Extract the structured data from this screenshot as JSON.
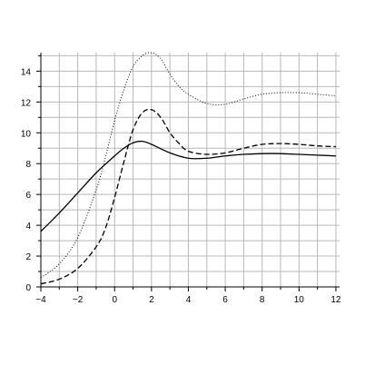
{
  "colors": {
    "background": "#ffffff",
    "grid": "#b8b8b8",
    "axis": "#000000",
    "line": "#000000"
  },
  "chart_data": {
    "type": "line",
    "title": "",
    "xlabel": "",
    "ylabel": "",
    "xlim": [
      -4,
      12.2
    ],
    "ylim": [
      0,
      15.2
    ],
    "grid": true,
    "legend": "none",
    "xticks": [
      -4,
      -2,
      0,
      2,
      4,
      6,
      8,
      10,
      12
    ],
    "xtick_labels": [
      "−4",
      "−2",
      "0",
      "2",
      "4",
      "6",
      "8",
      "10",
      "12"
    ],
    "yticks": [
      0,
      2,
      4,
      6,
      8,
      10,
      12,
      14
    ],
    "ytick_labels": [
      "0",
      "2",
      "4",
      "6",
      "8",
      "10",
      "12",
      "14"
    ],
    "series": [
      {
        "style": "solid",
        "x": [
          -4,
          -3,
          -2,
          -1,
          0,
          0.5,
          1,
          1.5,
          2,
          3,
          4,
          5,
          6,
          7,
          8,
          9,
          10,
          11,
          12
        ],
        "y": [
          3.6,
          4.8,
          6.1,
          7.4,
          8.5,
          9.0,
          9.35,
          9.45,
          9.25,
          8.7,
          8.35,
          8.35,
          8.5,
          8.6,
          8.65,
          8.65,
          8.6,
          8.55,
          8.5
        ]
      },
      {
        "style": "dashed",
        "x": [
          -4,
          -3,
          -2,
          -1,
          -0.5,
          0,
          0.5,
          1,
          1.5,
          2,
          2.5,
          3,
          3.5,
          4,
          5,
          6,
          7,
          8,
          9,
          10,
          11,
          12
        ],
        "y": [
          0.2,
          0.5,
          1.2,
          2.6,
          3.8,
          5.8,
          8.1,
          10.2,
          11.3,
          11.5,
          11.0,
          10.0,
          9.3,
          8.8,
          8.6,
          8.7,
          9.0,
          9.25,
          9.3,
          9.25,
          9.15,
          9.1
        ]
      },
      {
        "style": "dotted",
        "x": [
          -4,
          -3,
          -2,
          -1,
          -0.5,
          0,
          0.5,
          1,
          1.5,
          2,
          2.5,
          3,
          3.5,
          4,
          5,
          6,
          7,
          8,
          9,
          10,
          11,
          12
        ],
        "y": [
          0.6,
          1.5,
          3.2,
          6.3,
          8.4,
          10.8,
          12.8,
          14.3,
          15.0,
          15.2,
          14.8,
          13.8,
          13.0,
          12.5,
          11.9,
          11.85,
          12.2,
          12.5,
          12.6,
          12.6,
          12.5,
          12.4
        ]
      }
    ]
  }
}
